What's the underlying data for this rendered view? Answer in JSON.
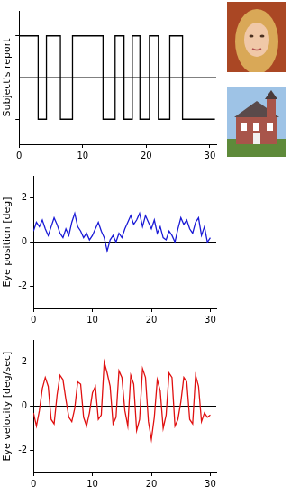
{
  "chart_data": [
    {
      "type": "line",
      "y_label": "Subject's report",
      "color": "#000000",
      "line_style": "steps",
      "x": [
        0,
        3.0,
        4.3,
        6.5,
        8.4,
        13.2,
        15.1,
        16.5,
        17.8,
        19.0,
        20.5,
        21.9,
        23.7,
        25.7,
        26.8,
        30.8
      ],
      "values": [
        -1,
        1,
        -1,
        1,
        -1,
        1,
        -1,
        1,
        -1,
        1,
        -1,
        1,
        -1,
        1,
        -1,
        -1
      ],
      "xlim": [
        0,
        31
      ],
      "xticks": [
        0,
        10,
        20,
        30
      ],
      "ylim": [
        -1.6,
        1.6
      ],
      "yticks": [
        -1,
        0,
        1
      ],
      "hline": 0,
      "grid": false,
      "tick_labels": "x"
    },
    {
      "type": "line",
      "y_label": "Eye position [deg]",
      "color": "#1a1ad6",
      "x": [
        0,
        0.5,
        1,
        1.5,
        2,
        2.5,
        3,
        3.5,
        4,
        4.5,
        5,
        5.5,
        6,
        6.5,
        7,
        7.5,
        8,
        8.5,
        9,
        9.5,
        10,
        10.5,
        11,
        11.5,
        12,
        12.5,
        13,
        13.5,
        14,
        14.5,
        15,
        15.5,
        16,
        16.5,
        17,
        17.5,
        18,
        18.5,
        19,
        19.5,
        20,
        20.5,
        21,
        21.5,
        22,
        22.5,
        23,
        23.5,
        24,
        24.5,
        25,
        25.5,
        26,
        26.5,
        27,
        27.5,
        28,
        28.5,
        29,
        29.5,
        30
      ],
      "values": [
        0.5,
        0.9,
        0.7,
        1.0,
        0.6,
        0.3,
        0.7,
        1.1,
        0.8,
        0.4,
        0.2,
        0.6,
        0.3,
        0.9,
        1.3,
        0.7,
        0.5,
        0.2,
        0.4,
        0.1,
        0.3,
        0.6,
        0.9,
        0.5,
        0.2,
        -0.4,
        0.1,
        0.3,
        0.0,
        0.4,
        0.2,
        0.6,
        0.9,
        1.2,
        0.8,
        1.0,
        1.3,
        0.7,
        1.2,
        0.9,
        0.6,
        1.0,
        0.4,
        0.7,
        0.2,
        0.1,
        0.5,
        0.3,
        0.0,
        0.6,
        1.1,
        0.8,
        1.0,
        0.6,
        0.4,
        0.9,
        1.1,
        0.3,
        0.7,
        0.0,
        0.2
      ],
      "xlim": [
        0,
        31
      ],
      "xticks": [
        0,
        10,
        20,
        30
      ],
      "ylim": [
        -3,
        3
      ],
      "yticks": [
        -2,
        0,
        2
      ],
      "hline": 0,
      "grid": false
    },
    {
      "type": "line",
      "y_label": "Eye velocity [deg/sec]",
      "color": "#e01010",
      "x": [
        0,
        0.5,
        1,
        1.5,
        2,
        2.5,
        3,
        3.5,
        4,
        4.5,
        5,
        5.5,
        6,
        6.5,
        7,
        7.5,
        8,
        8.5,
        9,
        9.5,
        10,
        10.5,
        11,
        11.5,
        12,
        12.5,
        13,
        13.5,
        14,
        14.5,
        15,
        15.5,
        16,
        16.5,
        17,
        17.5,
        18,
        18.5,
        19,
        19.5,
        20,
        20.5,
        21,
        21.5,
        22,
        22.5,
        23,
        23.5,
        24,
        24.5,
        25,
        25.5,
        26,
        26.5,
        27,
        27.5,
        28,
        28.5,
        29,
        29.5,
        30
      ],
      "values": [
        -0.3,
        -0.9,
        -0.2,
        0.8,
        1.3,
        0.9,
        -0.6,
        -0.8,
        0.5,
        1.4,
        1.2,
        0.3,
        -0.5,
        -0.7,
        -0.1,
        1.1,
        1.0,
        -0.5,
        -0.9,
        -0.3,
        0.6,
        0.9,
        -0.6,
        -0.4,
        2.0,
        1.5,
        0.9,
        -0.8,
        -0.5,
        1.6,
        1.3,
        -0.2,
        -0.9,
        1.4,
        1.0,
        -1.1,
        -0.6,
        1.7,
        1.3,
        -0.7,
        -1.5,
        -0.5,
        1.2,
        0.7,
        -1.0,
        -0.4,
        1.5,
        1.3,
        -0.9,
        -0.6,
        0.2,
        1.3,
        1.1,
        -0.6,
        -0.8,
        1.4,
        0.9,
        -0.7,
        -0.3,
        -0.5,
        -0.4
      ],
      "xlim": [
        0,
        31
      ],
      "xticks": [
        0,
        10,
        20,
        30
      ],
      "ylim": [
        -3,
        3
      ],
      "yticks": [
        -2,
        0,
        2
      ],
      "hline": 0,
      "grid": false
    }
  ]
}
